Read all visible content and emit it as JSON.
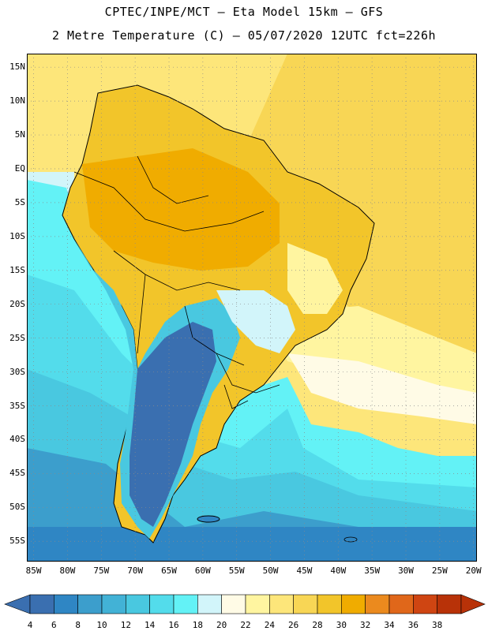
{
  "header": {
    "line1": "CPTEC/INPE/MCT –  Eta Model 15km – GFS",
    "line2": "2 Metre Temperature (C) – 05/07/2020 12UTC fct=226h"
  },
  "map": {
    "extent": {
      "lon": [
        -86,
        -19.5
      ],
      "lat": [
        -58,
        17
      ]
    },
    "lat_ticks": [
      {
        "value": 15,
        "label": "15N"
      },
      {
        "value": 10,
        "label": "10N"
      },
      {
        "value": 5,
        "label": "5N"
      },
      {
        "value": 0,
        "label": "EQ"
      },
      {
        "value": -5,
        "label": "5S"
      },
      {
        "value": -10,
        "label": "10S"
      },
      {
        "value": -15,
        "label": "15S"
      },
      {
        "value": -20,
        "label": "20S"
      },
      {
        "value": -25,
        "label": "25S"
      },
      {
        "value": -30,
        "label": "30S"
      },
      {
        "value": -35,
        "label": "35S"
      },
      {
        "value": -40,
        "label": "40S"
      },
      {
        "value": -45,
        "label": "45S"
      },
      {
        "value": -50,
        "label": "50S"
      },
      {
        "value": -55,
        "label": "55S"
      }
    ],
    "lon_ticks": [
      {
        "value": -85,
        "label": "85W"
      },
      {
        "value": -80,
        "label": "80W"
      },
      {
        "value": -75,
        "label": "75W"
      },
      {
        "value": -70,
        "label": "70W"
      },
      {
        "value": -65,
        "label": "65W"
      },
      {
        "value": -60,
        "label": "60W"
      },
      {
        "value": -55,
        "label": "55W"
      },
      {
        "value": -50,
        "label": "50W"
      },
      {
        "value": -45,
        "label": "45W"
      },
      {
        "value": -40,
        "label": "40W"
      },
      {
        "value": -35,
        "label": "35W"
      },
      {
        "value": -30,
        "label": "30W"
      },
      {
        "value": -25,
        "label": "25W"
      },
      {
        "value": -20,
        "label": "20W"
      }
    ],
    "gridlines": "dotted"
  },
  "colorbar": {
    "levels": [
      "4",
      "6",
      "8",
      "10",
      "12",
      "14",
      "16",
      "18",
      "20",
      "22",
      "24",
      "26",
      "28",
      "30",
      "32",
      "34",
      "36",
      "38"
    ],
    "colors": [
      "#3a6fb0",
      "#2f86c4",
      "#3c9ecc",
      "#42b2d6",
      "#49c8e0",
      "#53dceb",
      "#63f2f6",
      "#d2f5fa",
      "#fffbe6",
      "#fff5a0",
      "#fde67a",
      "#f8d655",
      "#f2c52a",
      "#f0ac00",
      "#eb8a1e",
      "#e0671a",
      "#cf4512",
      "#b83208"
    ],
    "low_arrow_color": "#3a6fb0",
    "high_arrow_color": "#b83208"
  }
}
